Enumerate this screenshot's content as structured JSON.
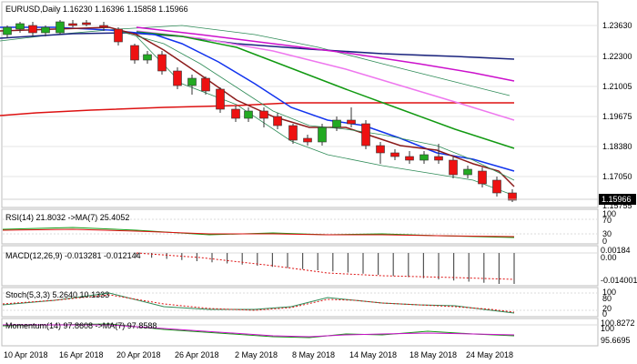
{
  "main": {
    "title": "EURUSD,Daily  1.16230 1.16396 1.15858 1.15966",
    "price_labels": [
      "1.23630",
      "1.22300",
      "1.21005",
      "1.19675",
      "1.18380",
      "1.17050",
      "1.15755"
    ],
    "current_price": "1.15966"
  },
  "rsi": {
    "title": "RSI(14) 21.8032  ->MA(7) 25.4052",
    "levels": [
      "100",
      "70",
      "30",
      "0"
    ]
  },
  "macd": {
    "title": "MACD(12,26,9) -0.013281 -0.012144",
    "levels": [
      "0.00184",
      "0.00",
      "-0.014001"
    ]
  },
  "stoch": {
    "title": "Stoch(5,3,3) 5.2640 10.1333",
    "levels": [
      "100",
      "80",
      "20",
      "0"
    ]
  },
  "momentum": {
    "title": "Momentum(14) 97.8608  ->MA(7) 97.8588",
    "levels": [
      "100.8272",
      "100",
      "95.6695"
    ]
  },
  "x_axis": {
    "labels": [
      "10 Apr 2018",
      "16 Apr 2018",
      "20 Apr 2018",
      "26 Apr 2018",
      "2 May 2018",
      "8 May 2018",
      "14 May 2018",
      "18 May 2018",
      "24 May 2018"
    ]
  },
  "colors": {
    "bull": "#22aa22",
    "bear": "#ee1111",
    "ma_red": "#dd1111",
    "ma_navy": "#1a237e",
    "ma_magenta": "#cc11cc",
    "ma_violet": "#ee77ee",
    "ma_green": "#119911",
    "ma_blue": "#1133ee",
    "ma_brown": "#8b1a1a",
    "ma_seagreen": "#2e8b57",
    "grid": "#e6e6e6"
  }
}
